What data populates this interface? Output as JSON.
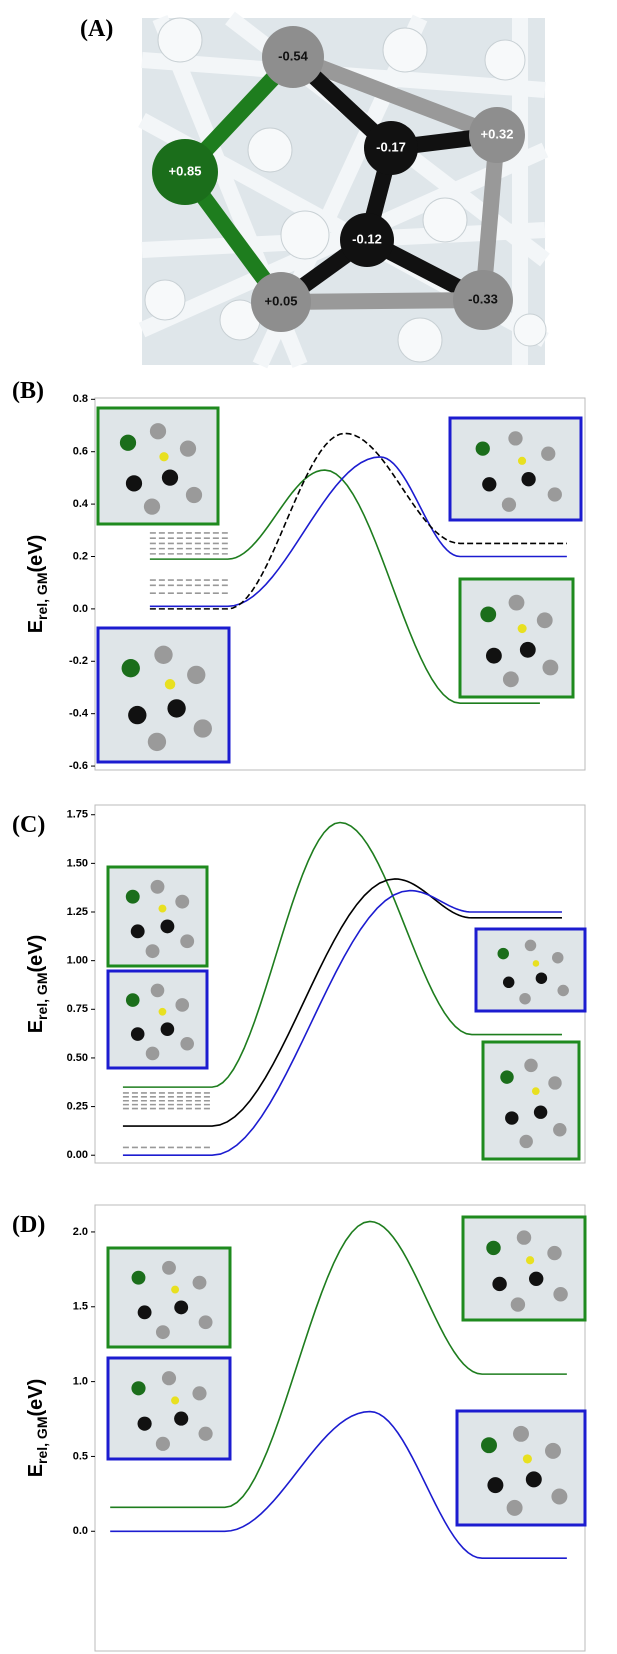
{
  "panel_a": {
    "label": "(A)",
    "charges": [
      "-0.54",
      "+0.32",
      "+0.85",
      "-0.17",
      "-0.12",
      "+0.05",
      "-0.33"
    ]
  },
  "chart_data": [
    {
      "type": "line",
      "label": "(B)",
      "ylabel": "E",
      "ylabel_sub": "rel, GM",
      "ylabel_unit": "(eV)",
      "xlim": [
        0,
        10
      ],
      "ylim": [
        -0.615,
        0.805
      ],
      "yticks": [
        0.8,
        0.6,
        0.4,
        0.2,
        {
          "value": 0,
          "label": "0.0"
        },
        -0.2,
        -0.4,
        -0.6
      ],
      "series": [
        {
          "color": "#999999",
          "dash": true,
          "x": [
            1.12,
            2.71
          ],
          "values": [
            0.06,
            0.06
          ]
        },
        {
          "color": "#999999",
          "dash": true,
          "x": [
            1.12,
            2.71
          ],
          "values": [
            0.09,
            0.09
          ]
        },
        {
          "color": "#999999",
          "dash": true,
          "x": [
            1.12,
            2.71
          ],
          "values": [
            0.11,
            0.11
          ]
        },
        {
          "color": "#999999",
          "dash": true,
          "x": [
            1.12,
            2.71
          ],
          "values": [
            0.21,
            0.21
          ]
        },
        {
          "color": "#999999",
          "dash": true,
          "x": [
            1.12,
            2.71
          ],
          "values": [
            0.23,
            0.23
          ]
        },
        {
          "color": "#999999",
          "dash": true,
          "x": [
            1.12,
            2.71
          ],
          "values": [
            0.25,
            0.25
          ]
        },
        {
          "color": "#999999",
          "dash": true,
          "x": [
            1.12,
            2.71
          ],
          "values": [
            0.27,
            0.27
          ]
        },
        {
          "color": "#999999",
          "dash": true,
          "x": [
            1.12,
            2.71
          ],
          "values": [
            0.29,
            0.29
          ]
        },
        {
          "color": "#1e7d1e",
          "dash": false,
          "x": [
            1.12,
            2.71,
            4.69,
            7.45,
            9.08
          ],
          "values": [
            0.19,
            0.19,
            0.53,
            -0.36,
            -0.36
          ]
        },
        {
          "color": "#1c1cd0",
          "dash": false,
          "x": [
            1.12,
            2.71,
            5.82,
            7.45,
            9.63
          ],
          "values": [
            0.01,
            0.01,
            0.58,
            0.2,
            0.2
          ]
        },
        {
          "color": "#000000",
          "dash": true,
          "x": [
            1.12,
            2.71,
            5.1,
            7.45,
            9.63
          ],
          "values": [
            0.0,
            0.0,
            0.67,
            0.25,
            0.25
          ]
        }
      ]
    },
    {
      "type": "line",
      "label": "(C)",
      "ylabel": "E",
      "ylabel_sub": "rel, GM",
      "ylabel_unit": "(eV)",
      "xlim": [
        0,
        10
      ],
      "ylim": [
        -0.04,
        1.8
      ],
      "yticks": [
        1.75,
        {
          "value": 1.5,
          "label": "1.50"
        },
        1.25,
        {
          "value": 1,
          "label": "1.00"
        },
        0.75,
        {
          "value": 0.5,
          "label": "0.50"
        },
        0.25,
        {
          "value": 0,
          "label": "0.00"
        }
      ],
      "series": [
        {
          "color": "#999999",
          "dash": true,
          "x": [
            0.57,
            2.39
          ],
          "values": [
            0.04,
            0.04
          ]
        },
        {
          "color": "#999999",
          "dash": true,
          "x": [
            0.57,
            2.39
          ],
          "values": [
            0.24,
            0.24
          ]
        },
        {
          "color": "#999999",
          "dash": true,
          "x": [
            0.57,
            2.39
          ],
          "values": [
            0.26,
            0.26
          ]
        },
        {
          "color": "#999999",
          "dash": true,
          "x": [
            0.57,
            2.39
          ],
          "values": [
            0.28,
            0.28
          ]
        },
        {
          "color": "#999999",
          "dash": true,
          "x": [
            0.57,
            2.39
          ],
          "values": [
            0.3,
            0.3
          ]
        },
        {
          "color": "#999999",
          "dash": true,
          "x": [
            0.57,
            2.39
          ],
          "values": [
            0.32,
            0.32
          ]
        },
        {
          "color": "#1e7d1e",
          "dash": false,
          "x": [
            0.57,
            2.39,
            5.0,
            7.69,
            9.53
          ],
          "values": [
            0.35,
            0.35,
            1.71,
            0.62,
            0.62
          ]
        },
        {
          "color": "#000000",
          "dash": false,
          "x": [
            0.57,
            2.39,
            6.12,
            7.69,
            9.53
          ],
          "values": [
            0.15,
            0.15,
            1.42,
            1.22,
            1.22
          ]
        },
        {
          "color": "#1c1cd0",
          "dash": false,
          "x": [
            0.57,
            2.39,
            6.43,
            7.69,
            9.53
          ],
          "values": [
            0.0,
            0.0,
            1.36,
            1.25,
            1.25
          ]
        }
      ]
    },
    {
      "type": "line",
      "label": "(D)",
      "ylabel": "E",
      "ylabel_sub": "rel, GM",
      "ylabel_unit": "(eV)",
      "xlim": [
        0,
        10
      ],
      "ylim": [
        -0.8,
        2.18
      ],
      "yticks": [
        {
          "value": 2,
          "label": "2.0"
        },
        1.5,
        {
          "value": 1,
          "label": "1.0"
        },
        0.5,
        {
          "value": 0,
          "label": "0.0"
        }
      ],
      "series": [
        {
          "color": "#1e7d1e",
          "dash": false,
          "x": [
            0.31,
            2.65,
            5.61,
            7.9,
            9.63
          ],
          "values": [
            0.16,
            0.16,
            2.07,
            1.05,
            1.05
          ]
        },
        {
          "color": "#1c1cd0",
          "dash": false,
          "x": [
            0.31,
            2.65,
            5.61,
            7.9,
            9.63
          ],
          "values": [
            0.0,
            0.0,
            0.8,
            -0.18,
            -0.18
          ]
        }
      ]
    }
  ]
}
